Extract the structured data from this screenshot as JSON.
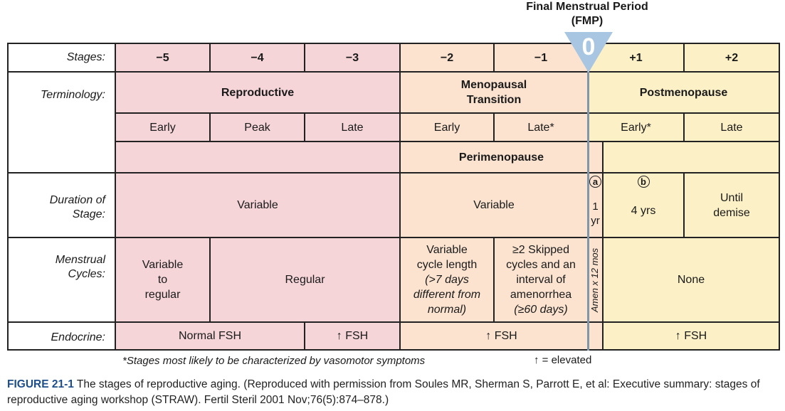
{
  "fmp": {
    "title": "Final Menstrual Period",
    "abbr": "(FMP)",
    "zero": "0"
  },
  "colors": {
    "reproductive": "#f6d5d9",
    "transition": "#fbe3cf",
    "postmenopause": "#fcf0c6",
    "fmp_marker": "#a8c6e2",
    "fmp_line": "#7f96ab",
    "caption_accent": "#1d4e8c"
  },
  "labels": {
    "stages": "Stages:",
    "terminology": "Terminology:",
    "duration_line1": "Duration of",
    "duration_line2": "Stage:",
    "menstrual_line1": "Menstrual",
    "menstrual_line2": "Cycles:",
    "endocrine": "Endocrine:"
  },
  "stages": [
    "−5",
    "−4",
    "−3",
    "−2",
    "−1",
    "+1",
    "+2"
  ],
  "terminology": {
    "reproductive": "Reproductive",
    "transition_line1": "Menopausal",
    "transition_line2": "Transition",
    "postmenopause": "Postmenopause"
  },
  "substages": [
    "Early",
    "Peak",
    "Late",
    "Early",
    "Late*",
    "Early*",
    "Late"
  ],
  "perimenopause": "Perimenopause",
  "duration": {
    "reproductive": "Variable",
    "transition": "Variable",
    "a_marker": "a",
    "a_value_line1": "1",
    "a_value_line2": "yr",
    "b_marker": "b",
    "b_value": "4 yrs",
    "plus2_line1": "Until",
    "plus2_line2": "demise"
  },
  "menstrual": {
    "minus5_line1": "Variable",
    "minus5_line2": "to",
    "minus5_line3": "regular",
    "regular": "Regular",
    "minus2_line1": "Variable",
    "minus2_line2": "cycle length",
    "minus2_line3": "(>7 days",
    "minus2_line4": "different from",
    "minus2_line5": "normal)",
    "minus1_line1": "≥2 Skipped",
    "minus1_line2": "cycles and an",
    "minus1_line3": "interval of",
    "minus1_line4": "amenorrhea",
    "minus1_line5": "(≥60 days)",
    "amen": "Amen x 12 mos",
    "post": "None"
  },
  "endocrine": {
    "normal": "Normal FSH",
    "minus3": "↑ FSH",
    "transition": "↑ FSH",
    "post": "↑ FSH"
  },
  "footnotes": {
    "vasomotor": "*Stages most likely to be characterized by vasomotor symptoms",
    "elevated": "↑ = elevated"
  },
  "caption": {
    "figure": "FIGURE 21-1",
    "text": "The stages of reproductive aging. (Reproduced with permission from Soules MR, Sherman S, Parrott E, et al: Executive summary: stages of reproductive aging workshop (STRAW). Fertil Steril 2001 Nov;76(5):874–878.)"
  }
}
